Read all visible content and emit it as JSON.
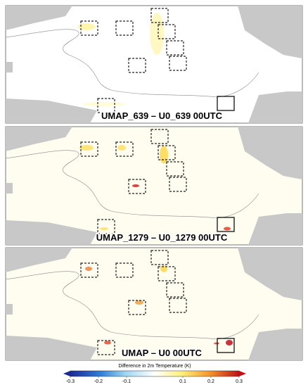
{
  "panels": [
    {
      "label": "UMAP_639 – U0_639 00UTC"
    },
    {
      "label": "UMAP_1279 – U0_1279 00UTC"
    },
    {
      "label": "UMAP – U0 00UTC"
    }
  ],
  "colorbar": {
    "title": "Difference in 2m Temperature (K)",
    "lim": [
      -0.3,
      0.3
    ],
    "ticks": [
      -0.3,
      -0.2,
      -0.1,
      0.1,
      0.2,
      0.3
    ]
  }
}
